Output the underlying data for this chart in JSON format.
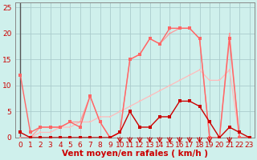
{
  "bg_color": "#cff0ec",
  "grid_color": "#aacccc",
  "xlim": [
    0,
    23
  ],
  "ylim": [
    0,
    26
  ],
  "yticks": [
    0,
    5,
    10,
    15,
    20,
    25
  ],
  "xticks": [
    0,
    1,
    2,
    3,
    4,
    5,
    6,
    7,
    8,
    9,
    10,
    11,
    12,
    13,
    14,
    15,
    16,
    17,
    18,
    19,
    20,
    21,
    22,
    23
  ],
  "xlabel": "Vent moyen/en rafales ( km/h )",
  "series": [
    {
      "x": [
        0,
        1,
        2,
        3,
        4,
        5,
        6,
        7,
        8,
        9,
        10,
        11,
        12,
        13,
        14,
        15,
        16,
        17,
        18,
        19,
        20,
        21,
        22,
        23
      ],
      "y": [
        0,
        0,
        1,
        1,
        2,
        2,
        3,
        3,
        4,
        4,
        5,
        6,
        7,
        8,
        9,
        10,
        11,
        12,
        13,
        11,
        11,
        13,
        0,
        0
      ],
      "color": "#ffbbbb",
      "lw": 0.9,
      "marker": "s",
      "ms": 2.0
    },
    {
      "x": [
        0,
        1,
        2,
        3,
        4,
        5,
        6,
        7,
        8,
        9,
        10,
        11,
        12,
        13,
        14,
        15,
        16,
        17,
        18,
        19,
        20,
        21,
        22,
        23
      ],
      "y": [
        0,
        0,
        2,
        2,
        2,
        3,
        3,
        8,
        3,
        0,
        1,
        15,
        16,
        19,
        18,
        20,
        21,
        21,
        19,
        0,
        0,
        20,
        0,
        0
      ],
      "color": "#ff9999",
      "lw": 0.9,
      "marker": "s",
      "ms": 2.0
    },
    {
      "x": [
        0,
        1,
        2,
        3,
        4,
        5,
        6,
        7,
        8,
        9,
        10,
        11,
        12,
        13,
        14,
        15,
        16,
        17,
        18,
        19,
        20,
        21,
        22,
        23
      ],
      "y": [
        12,
        1,
        2,
        2,
        2,
        3,
        2,
        8,
        3,
        0,
        1,
        15,
        16,
        19,
        18,
        21,
        21,
        21,
        19,
        0,
        0,
        19,
        0,
        0
      ],
      "color": "#ff6666",
      "lw": 1.0,
      "marker": "s",
      "ms": 2.5
    },
    {
      "x": [
        0,
        1,
        2,
        3,
        4,
        5,
        6,
        7,
        8,
        9,
        10,
        11,
        12,
        13,
        14,
        15,
        16,
        17,
        18,
        19,
        20,
        21,
        22,
        23
      ],
      "y": [
        1,
        0,
        0,
        0,
        0,
        0,
        0,
        0,
        0,
        0,
        1,
        5,
        2,
        2,
        4,
        4,
        7,
        7,
        6,
        3,
        0,
        2,
        1,
        0
      ],
      "color": "#cc0000",
      "lw": 1.0,
      "marker": "s",
      "ms": 2.5
    }
  ],
  "arrows_x": [
    10,
    11,
    12,
    13,
    14,
    15,
    16,
    17,
    18,
    19,
    21
  ],
  "arrow_color": "#cc0000",
  "tick_color": "#cc0000",
  "label_fontsize": 6.5,
  "xlabel_fontsize": 7.5
}
